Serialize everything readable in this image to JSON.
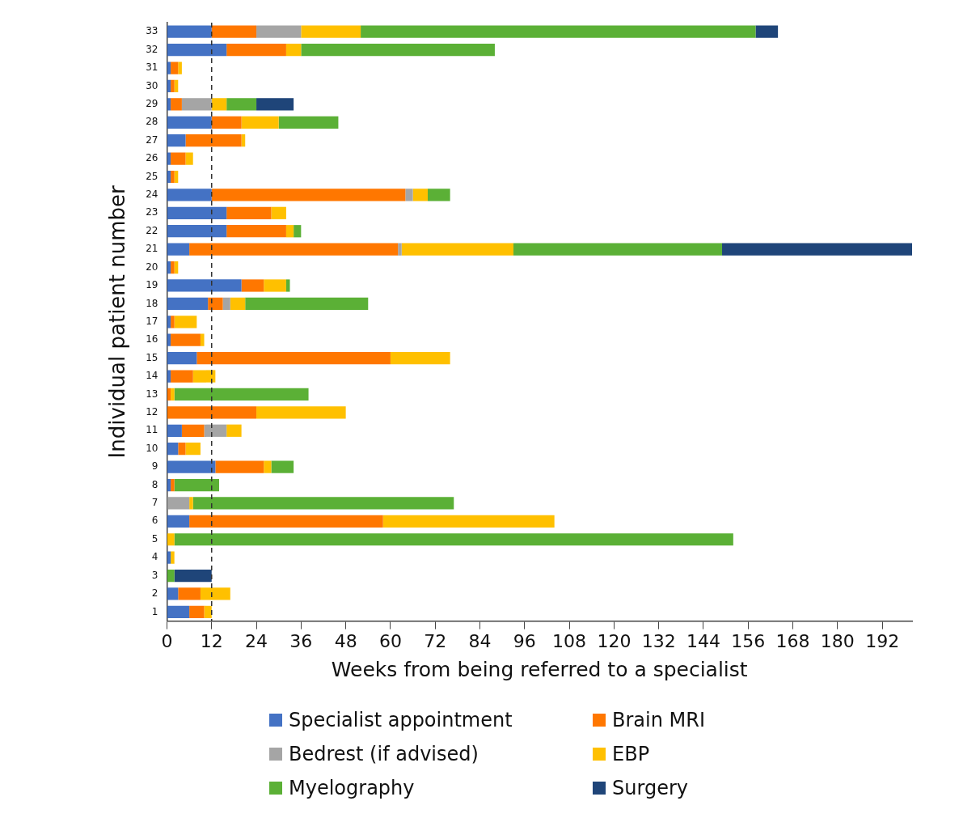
{
  "chart_data": {
    "type": "bar",
    "orientation": "horizontal",
    "stacked": true,
    "xlabel": "Weeks from being referred to a specialist",
    "ylabel": "Individual patient number",
    "categories": [
      "33",
      "32",
      "31",
      "30",
      "29",
      "28",
      "27",
      "26",
      "25",
      "24",
      "23",
      "22",
      "21",
      "20",
      "19",
      "18",
      "17",
      "16",
      "15",
      "14",
      "13",
      "12",
      "11",
      "10",
      "9",
      "8",
      "7",
      "6",
      "5",
      "4",
      "3",
      "2",
      "1"
    ],
    "xlim": [
      0,
      200
    ],
    "xticks": [
      0,
      12,
      24,
      36,
      48,
      60,
      72,
      84,
      96,
      108,
      120,
      132,
      144,
      156,
      168,
      180,
      192
    ],
    "legend": "bottom",
    "ref_lines": [
      {
        "axis": "x",
        "value": 12,
        "color": "#333333",
        "line_style": "dashed"
      }
    ],
    "series": [
      {
        "name": "Specialist appointment",
        "color": "#4472c4",
        "values": [
          12,
          16,
          1,
          1,
          1,
          12,
          5,
          1,
          1,
          12,
          16,
          16,
          6,
          1,
          20,
          11,
          1,
          1,
          8,
          1,
          null,
          null,
          4,
          3,
          13,
          1,
          null,
          6,
          null,
          1,
          null,
          3,
          6
        ]
      },
      {
        "name": "Brain MRI",
        "color": "#ff7700",
        "values": [
          12,
          16,
          2,
          1,
          3,
          8,
          15,
          4,
          1,
          52,
          12,
          16,
          56,
          1,
          6,
          4,
          1,
          8,
          52,
          6,
          1,
          24,
          6,
          2,
          13,
          1,
          null,
          52,
          null,
          null,
          null,
          6,
          4
        ]
      },
      {
        "name": "Bedrest (if advised)",
        "color": "#a5a5a5",
        "values": [
          12,
          null,
          null,
          null,
          8,
          null,
          null,
          null,
          null,
          2,
          null,
          null,
          1,
          null,
          null,
          2,
          null,
          null,
          null,
          null,
          null,
          null,
          6,
          null,
          null,
          null,
          6,
          null,
          null,
          null,
          null,
          null,
          null
        ]
      },
      {
        "name": "EBP",
        "color": "#ffc000",
        "values": [
          16,
          4,
          1,
          1,
          4,
          10,
          1,
          2,
          1,
          4,
          4,
          2,
          30,
          1,
          6,
          4,
          6,
          1,
          16,
          6,
          1,
          24,
          4,
          4,
          2,
          null,
          1,
          46,
          2,
          1,
          null,
          8,
          2
        ]
      },
      {
        "name": "Myelography",
        "color": "#5bb036",
        "values": [
          106,
          52,
          null,
          null,
          8,
          16,
          null,
          null,
          null,
          6,
          null,
          2,
          56,
          null,
          1,
          33,
          null,
          null,
          null,
          null,
          36,
          null,
          null,
          null,
          6,
          12,
          70,
          null,
          150,
          null,
          2,
          null,
          null
        ]
      },
      {
        "name": "Surgery",
        "color": "#1f4579",
        "values": [
          6,
          null,
          null,
          null,
          10,
          null,
          null,
          null,
          null,
          null,
          null,
          null,
          51,
          null,
          null,
          null,
          null,
          null,
          null,
          null,
          null,
          null,
          null,
          null,
          null,
          null,
          null,
          null,
          null,
          null,
          10,
          null,
          null
        ]
      }
    ]
  }
}
